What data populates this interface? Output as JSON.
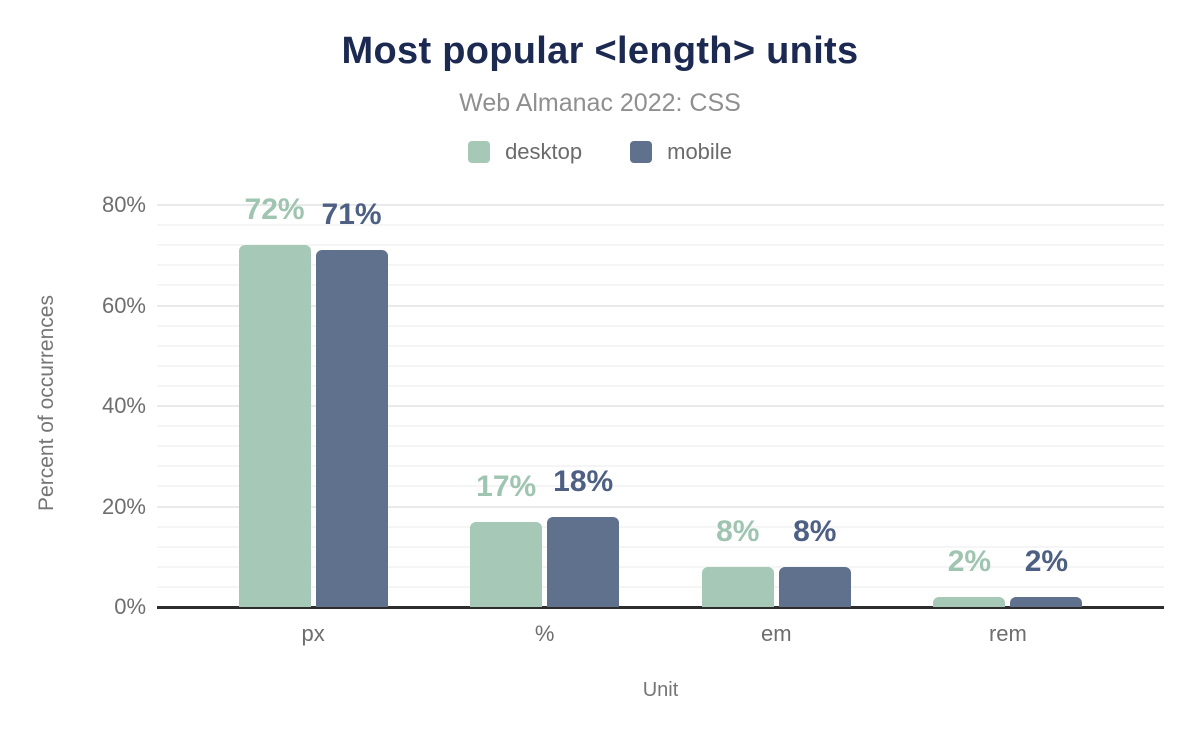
{
  "chart_data": {
    "type": "bar",
    "title": "Most popular <length> units",
    "subtitle": "Web Almanac 2022: CSS",
    "categories": [
      "px",
      "%",
      "em",
      "rem"
    ],
    "series": [
      {
        "name": "desktop",
        "values": [
          72,
          17,
          8,
          2
        ],
        "color": "#a6c9b7",
        "label_color": "#9fc5b1"
      },
      {
        "name": "mobile",
        "values": [
          71,
          18,
          8,
          2
        ],
        "color": "#5f718c",
        "label_color": "#4d6084"
      }
    ],
    "xlabel": "Unit",
    "ylabel": "Percent of occurrences",
    "ylim": [
      0,
      82
    ],
    "yticks": [
      0,
      20,
      40,
      60,
      80
    ],
    "ytick_suffix": "%",
    "data_label_suffix": "%",
    "minor_grid_step": 4,
    "grid": "horizontal",
    "legend_position": "top",
    "colors": {
      "title_text": "#1c2a52",
      "subtitle_text": "#8f8f8f",
      "axis_text": "#6e6e6e",
      "baseline": "#2d2d2d",
      "grid_minor": "#f5f5f5",
      "grid_major": "#eaeaea"
    }
  }
}
